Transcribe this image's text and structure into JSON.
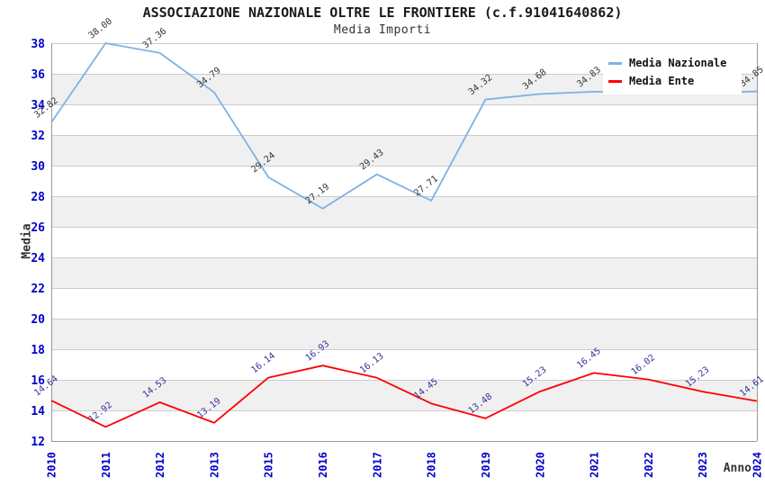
{
  "chart_data": {
    "type": "line",
    "title": "ASSOCIAZIONE NAZIONALE OLTRE LE FRONTIERE (c.f.91041640862)",
    "subtitle": "Media Importi",
    "xlabel": "Anno",
    "ylabel": "Media",
    "x": [
      "2010",
      "2011",
      "2012",
      "2013",
      "2015",
      "2016",
      "2017",
      "2018",
      "2019",
      "2020",
      "2021",
      "2022",
      "2023",
      "2024"
    ],
    "series": [
      {
        "name": "Media Nazionale",
        "color": "#7EB2E6",
        "label_color": "#333333",
        "values": [
          32.82,
          38.0,
          37.36,
          34.79,
          29.24,
          27.19,
          29.43,
          27.71,
          34.32,
          34.68,
          34.83,
          34.8,
          34.75,
          34.85
        ],
        "point_labels": [
          "32.82",
          "38.00",
          "37.36",
          "34.79",
          "29.24",
          "27.19",
          "29.43",
          "27.71",
          "34.32",
          "34.68",
          "34.83",
          null,
          null,
          "34.85"
        ]
      },
      {
        "name": "Media Ente",
        "color": "#FF0000",
        "label_color": "#333399",
        "values": [
          14.64,
          12.92,
          14.53,
          13.19,
          16.14,
          16.93,
          16.13,
          14.45,
          13.48,
          15.23,
          16.45,
          16.02,
          15.23,
          14.61
        ],
        "point_labels": [
          "14.64",
          "12.92",
          "14.53",
          "13.19",
          "16.14",
          "16.93",
          "16.13",
          "14.45",
          "13.48",
          "15.23",
          "16.45",
          "16.02",
          "15.23",
          "14.61"
        ]
      }
    ],
    "ylim": [
      12,
      38
    ],
    "y_ticks": [
      38,
      36,
      34,
      32,
      30,
      28,
      26,
      24,
      22,
      20,
      18,
      16,
      14,
      12
    ],
    "grid": true,
    "legend_position": "top-right",
    "colors": {
      "band": "#F0F0F0",
      "grid": "#CCCCCC",
      "axis": "#999999",
      "tick": "#0000CC"
    }
  }
}
